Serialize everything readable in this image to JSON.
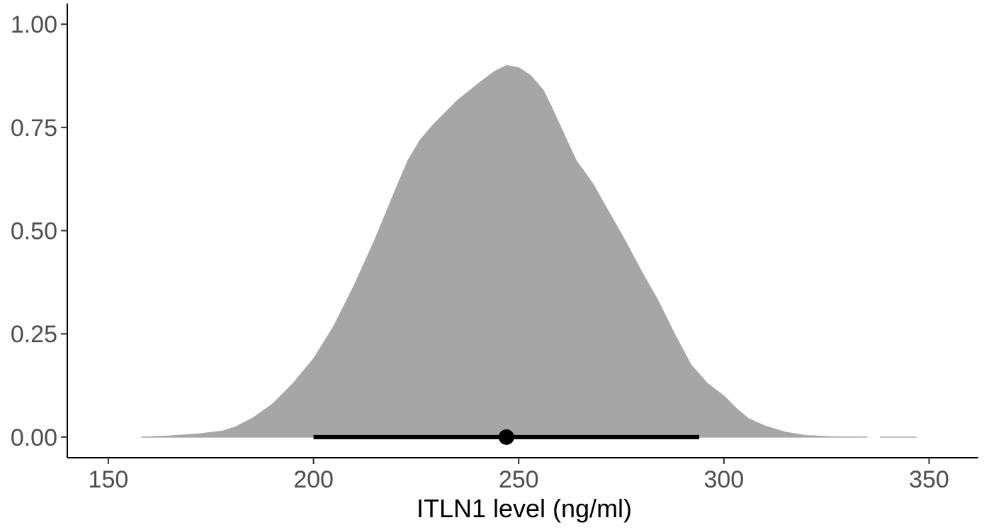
{
  "chart_data": {
    "type": "area",
    "title": "",
    "xlabel": "ITLN1 level (ng/ml)",
    "ylabel": "",
    "xlim": [
      140,
      362
    ],
    "ylim": [
      -0.05,
      1.05
    ],
    "x_ticks": [
      150,
      200,
      250,
      300,
      350
    ],
    "y_ticks": [
      0.0,
      0.25,
      0.5,
      0.75,
      1.0
    ],
    "x_tick_labels": [
      "150",
      "200",
      "250",
      "300",
      "350"
    ],
    "y_tick_labels": [
      "0.00",
      "0.25",
      "0.50",
      "0.75",
      "1.00"
    ],
    "grid": false,
    "legend": "none",
    "fill_color": "#a6a6a6",
    "interval_color": "#000000",
    "density": {
      "x": [
        158,
        165,
        172,
        178,
        181,
        185,
        190,
        195,
        200,
        205,
        210,
        215,
        220,
        223,
        226,
        229,
        232,
        235,
        240,
        244,
        247,
        250,
        253,
        256,
        258,
        261,
        264,
        268,
        272,
        276,
        280,
        284,
        288,
        292,
        296,
        300,
        303,
        306,
        310,
        315,
        320,
        326,
        332,
        335
      ],
      "y": [
        0.0,
        0.003,
        0.008,
        0.015,
        0.025,
        0.045,
        0.08,
        0.13,
        0.19,
        0.27,
        0.37,
        0.48,
        0.6,
        0.67,
        0.72,
        0.755,
        0.785,
        0.815,
        0.855,
        0.885,
        0.9,
        0.895,
        0.875,
        0.84,
        0.8,
        0.735,
        0.67,
        0.615,
        0.545,
        0.475,
        0.4,
        0.33,
        0.25,
        0.175,
        0.13,
        0.1,
        0.07,
        0.045,
        0.027,
        0.012,
        0.004,
        0.001,
        0.0005,
        0.0
      ],
      "tail_x": [
        338,
        347
      ],
      "tail_y": [
        0.0,
        0.0
      ]
    },
    "point_estimate": {
      "x": 247,
      "y": 0.0
    },
    "interval": {
      "low": 200,
      "high": 294
    }
  }
}
